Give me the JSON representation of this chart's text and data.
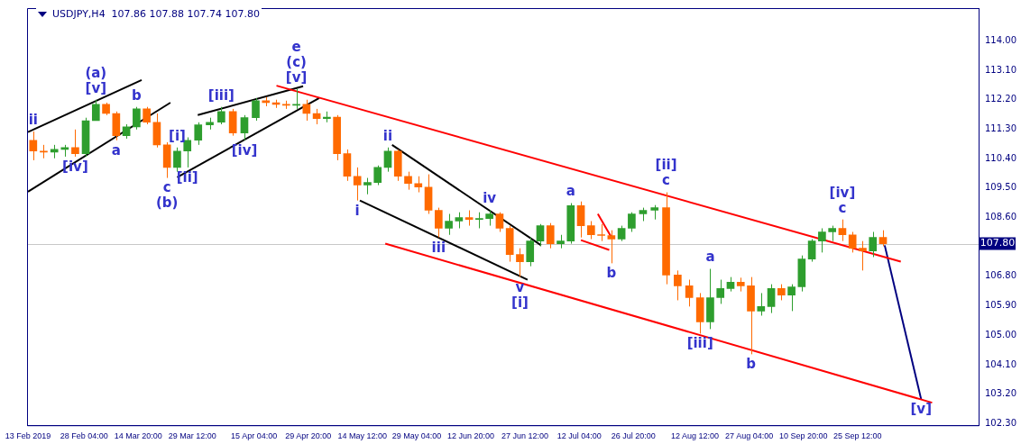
{
  "chart_data": {
    "type": "candlestick",
    "title": "USDJPY,H4  107.86 107.88 107.74 107.80",
    "x": [
      "2019-02-14T10:00",
      "2019-02-17T06:00",
      "2019-02-20T03:00",
      "2019-02-22T23:00",
      "2019-02-25T19:00",
      "2019-02-28T15:00",
      "2019-03-03T09:00",
      "2019-03-06T03:00",
      "2019-03-08T21:00",
      "2019-03-11T15:00",
      "2019-03-14T09:00",
      "2019-03-17T03:00",
      "2019-03-19T21:00",
      "2019-03-22T15:00",
      "2019-03-25T09:00",
      "2019-03-28T03:00",
      "2019-03-31T01:30",
      "2019-04-03T04:30",
      "2019-04-06T07:30",
      "2019-04-09T10:30",
      "2019-04-12T13:30",
      "2019-04-15T15:00",
      "2019-04-18T09:00",
      "2019-04-21T03:00",
      "2019-04-23T21:00",
      "2019-04-26T15:00",
      "2019-04-29T09:00",
      "2019-05-02T03:00",
      "2019-05-04T21:00",
      "2019-05-07T15:00",
      "2019-05-10T09:00",
      "2019-05-13T03:00",
      "2019-05-15T21:00",
      "2019-05-18T15:00",
      "2019-05-21T09:00",
      "2019-05-24T03:00",
      "2019-05-26T21:00",
      "2019-05-29T15:00",
      "2019-06-01T09:00",
      "2019-06-04T03:00",
      "2019-06-06T21:00",
      "2019-06-09T15:00",
      "2019-06-12T09:00",
      "2019-06-15T03:00",
      "2019-06-17T21:00",
      "2019-06-20T15:00",
      "2019-06-23T09:00",
      "2019-06-26T03:00",
      "2019-06-28T21:00",
      "2019-07-01T15:00",
      "2019-07-04T09:00",
      "2019-07-07T03:00",
      "2019-07-09T21:00",
      "2019-07-12T15:00",
      "2019-07-15T09:00",
      "2019-07-18T03:00",
      "2019-07-20T21:00",
      "2019-07-23T15:00",
      "2019-07-26T09:00",
      "2019-07-29T10:30",
      "2019-08-01T13:30",
      "2019-08-04T16:30",
      "2019-08-07T19:30",
      "2019-08-10T22:30",
      "2019-08-13T21:00",
      "2019-08-16T15:00",
      "2019-08-19T09:00",
      "2019-08-22T03:00",
      "2019-08-24T21:00",
      "2019-08-27T15:00",
      "2019-08-30T09:00",
      "2019-09-02T03:00",
      "2019-09-04T21:00",
      "2019-09-07T15:00",
      "2019-09-10T09:00",
      "2019-09-13T03:00",
      "2019-09-15T21:00",
      "2019-09-18T15:00",
      "2019-09-21T09:00",
      "2019-09-24T03:00",
      "2019-09-26T21:00",
      "2019-09-29T15:00",
      "2019-10-02T09:00"
    ],
    "ohlc": [
      [
        110.96,
        111.23,
        110.35,
        110.63
      ],
      [
        110.63,
        110.82,
        110.41,
        110.6
      ],
      [
        110.6,
        110.82,
        110.41,
        110.68
      ],
      [
        110.68,
        110.82,
        110.46,
        110.74
      ],
      [
        110.74,
        111.29,
        110.46,
        110.55
      ],
      [
        110.55,
        111.65,
        110.46,
        111.56
      ],
      [
        111.56,
        112.2,
        111.56,
        112.06
      ],
      [
        112.06,
        112.11,
        111.73,
        111.78
      ],
      [
        111.78,
        111.84,
        110.96,
        111.1
      ],
      [
        111.1,
        111.45,
        111.01,
        111.37
      ],
      [
        111.37,
        111.98,
        111.29,
        111.92
      ],
      [
        111.92,
        111.98,
        111.45,
        111.51
      ],
      [
        111.51,
        111.78,
        110.74,
        110.82
      ],
      [
        110.82,
        110.9,
        109.81,
        110.13
      ],
      [
        110.13,
        110.74,
        110.0,
        110.63
      ],
      [
        110.63,
        111.05,
        110.13,
        110.96
      ],
      [
        110.96,
        111.51,
        110.82,
        111.43
      ],
      [
        111.43,
        111.65,
        111.29,
        111.51
      ],
      [
        111.51,
        111.98,
        111.45,
        111.84
      ],
      [
        111.84,
        111.92,
        111.1,
        111.18
      ],
      [
        111.18,
        111.73,
        110.96,
        111.65
      ],
      [
        111.65,
        112.25,
        111.56,
        112.17
      ],
      [
        112.17,
        112.28,
        112.0,
        112.11
      ],
      [
        112.11,
        112.2,
        111.95,
        112.06
      ],
      [
        112.06,
        112.17,
        111.92,
        112.03
      ],
      [
        112.03,
        112.53,
        111.92,
        112.06
      ],
      [
        112.06,
        112.2,
        111.56,
        111.78
      ],
      [
        111.78,
        111.92,
        111.45,
        111.62
      ],
      [
        111.62,
        111.84,
        111.51,
        111.67
      ],
      [
        111.67,
        111.73,
        110.35,
        110.55
      ],
      [
        110.55,
        110.68,
        109.72,
        109.86
      ],
      [
        109.86,
        110.13,
        109.12,
        109.59
      ],
      [
        109.59,
        109.81,
        109.31,
        109.67
      ],
      [
        109.67,
        110.19,
        109.59,
        110.13
      ],
      [
        110.13,
        110.74,
        110.0,
        110.63
      ],
      [
        110.63,
        110.68,
        109.72,
        109.86
      ],
      [
        109.86,
        110.0,
        109.45,
        109.64
      ],
      [
        109.64,
        109.86,
        109.37,
        109.53
      ],
      [
        109.53,
        109.92,
        108.71,
        108.82
      ],
      [
        108.82,
        108.9,
        107.99,
        108.27
      ],
      [
        108.27,
        108.71,
        108.07,
        108.49
      ],
      [
        108.49,
        108.76,
        108.27,
        108.6
      ],
      [
        108.6,
        108.82,
        108.35,
        108.54
      ],
      [
        108.54,
        108.76,
        108.27,
        108.57
      ],
      [
        108.57,
        108.82,
        108.35,
        108.71
      ],
      [
        108.71,
        108.76,
        108.16,
        108.27
      ],
      [
        108.27,
        108.35,
        107.25,
        107.47
      ],
      [
        107.47,
        107.66,
        106.78,
        107.25
      ],
      [
        107.25,
        107.99,
        107.11,
        107.88
      ],
      [
        107.88,
        108.4,
        107.72,
        108.35
      ],
      [
        108.35,
        108.43,
        107.66,
        107.8
      ],
      [
        107.8,
        108.07,
        107.66,
        107.88
      ],
      [
        107.88,
        109.04,
        107.8,
        108.96
      ],
      [
        108.96,
        109.09,
        107.99,
        108.35
      ],
      [
        108.35,
        108.49,
        107.94,
        108.07
      ],
      [
        108.07,
        108.4,
        107.88,
        108.05
      ],
      [
        108.05,
        108.21,
        107.2,
        107.94
      ],
      [
        107.94,
        108.35,
        107.88,
        108.27
      ],
      [
        108.27,
        108.76,
        108.16,
        108.71
      ],
      [
        108.71,
        108.9,
        108.49,
        108.82
      ],
      [
        108.82,
        108.98,
        108.54,
        108.9
      ],
      [
        108.9,
        109.37,
        106.56,
        106.84
      ],
      [
        106.84,
        106.98,
        106.07,
        106.51
      ],
      [
        106.51,
        106.7,
        105.88,
        106.15
      ],
      [
        106.15,
        106.29,
        105.05,
        105.41
      ],
      [
        105.41,
        107.03,
        105.19,
        106.15
      ],
      [
        106.15,
        106.7,
        105.96,
        106.43
      ],
      [
        106.43,
        106.78,
        106.34,
        106.62
      ],
      [
        106.62,
        106.76,
        106.34,
        106.51
      ],
      [
        106.51,
        106.78,
        104.42,
        105.74
      ],
      [
        105.74,
        106.29,
        105.6,
        105.88
      ],
      [
        105.88,
        106.56,
        105.68,
        106.43
      ],
      [
        106.43,
        106.56,
        106.07,
        106.23
      ],
      [
        106.23,
        106.56,
        105.74,
        106.48
      ],
      [
        106.48,
        107.44,
        106.34,
        107.33
      ],
      [
        107.33,
        107.94,
        107.25,
        107.88
      ],
      [
        107.88,
        108.27,
        107.53,
        108.16
      ],
      [
        108.16,
        108.35,
        107.88,
        108.27
      ],
      [
        108.27,
        108.54,
        107.88,
        108.07
      ],
      [
        108.07,
        108.16,
        107.53,
        107.66
      ],
      [
        107.66,
        107.88,
        106.98,
        107.58
      ],
      [
        107.58,
        108.16,
        107.39,
        107.99
      ],
      [
        107.99,
        108.21,
        107.72,
        107.8
      ]
    ],
    "colors": [
      "#ff6a00",
      "#ff6a00",
      "#2e9e2e",
      "#2e9e2e",
      "#ff6a00",
      "#2e9e2e",
      "#2e9e2e",
      "#ff6a00",
      "#ff6a00",
      "#2e9e2e",
      "#2e9e2e",
      "#ff6a00",
      "#ff6a00",
      "#ff6a00",
      "#2e9e2e",
      "#2e9e2e",
      "#2e9e2e",
      "#2e9e2e",
      "#2e9e2e",
      "#ff6a00",
      "#2e9e2e",
      "#2e9e2e",
      "#ff6a00",
      "#ff6a00",
      "#ff6a00",
      "#2e9e2e",
      "#ff6a00",
      "#ff6a00",
      "#2e9e2e",
      "#ff6a00",
      "#ff6a00",
      "#ff6a00",
      "#2e9e2e",
      "#2e9e2e",
      "#2e9e2e",
      "#ff6a00",
      "#ff6a00",
      "#ff6a00",
      "#ff6a00",
      "#ff6a00",
      "#2e9e2e",
      "#2e9e2e",
      "#ff6a00",
      "#2e9e2e",
      "#2e9e2e",
      "#ff6a00",
      "#ff6a00",
      "#ff6a00",
      "#2e9e2e",
      "#2e9e2e",
      "#ff6a00",
      "#2e9e2e",
      "#2e9e2e",
      "#ff6a00",
      "#ff6a00",
      "#ff6a00",
      "#ff6a00",
      "#2e9e2e",
      "#2e9e2e",
      "#2e9e2e",
      "#2e9e2e",
      "#ff6a00",
      "#ff6a00",
      "#ff6a00",
      "#ff6a00",
      "#2e9e2e",
      "#2e9e2e",
      "#2e9e2e",
      "#ff6a00",
      "#ff6a00",
      "#2e9e2e",
      "#2e9e2e",
      "#ff6a00",
      "#2e9e2e",
      "#2e9e2e",
      "#2e9e2e",
      "#2e9e2e",
      "#2e9e2e",
      "#ff6a00",
      "#ff6a00",
      "#ff6a00",
      "#2e9e2e",
      "#ff6a00"
    ],
    "series": [
      {
        "type": "line",
        "color": "#ff0000",
        "x": [
          "2019-04-21T06:00",
          "2019-10-07T04:30"
        ],
        "values": [
          112.63,
          107.25
        ]
      },
      {
        "type": "line",
        "color": "#ff0000",
        "x": [
          "2019-05-20T16:30",
          "2019-10-15T16:00"
        ],
        "values": [
          107.8,
          102.94
        ]
      },
      {
        "type": "line",
        "color": "#000000",
        "x": [
          "2019-05-22T12:30",
          "2019-07-01T20:30"
        ],
        "values": [
          110.82,
          107.75
        ]
      },
      {
        "type": "line",
        "color": "#000000",
        "x": [
          "2019-05-13T19:30",
          "2019-06-28T04:30"
        ],
        "values": [
          109.12,
          106.7
        ]
      },
      {
        "type": "line",
        "color": "#000000",
        "x": [
          "2019-02-13T00:00",
          "2019-03-15T18:00"
        ],
        "values": [
          111.21,
          112.8
        ]
      },
      {
        "type": "line",
        "color": "#000000",
        "x": [
          "2019-02-13T00:00",
          "2019-03-23T13:00"
        ],
        "values": [
          109.39,
          112.11
        ]
      },
      {
        "type": "line",
        "color": "#000000",
        "x": [
          "2019-03-30T22:30",
          "2019-04-28T11:00"
        ],
        "values": [
          111.73,
          112.61
        ]
      },
      {
        "type": "line",
        "color": "#000000",
        "x": [
          "2019-03-25T09:00",
          "2019-05-02T19:30"
        ],
        "values": [
          109.83,
          112.25
        ]
      },
      {
        "type": "line",
        "color": "#ff0000",
        "x": [
          "2019-07-12T15:00",
          "2019-07-20T07:00"
        ],
        "values": [
          107.91,
          107.61
        ]
      },
      {
        "type": "line",
        "color": "#ff0000",
        "x": [
          "2019-07-17T05:00",
          "2019-07-20T18:00"
        ],
        "values": [
          108.71,
          108.02
        ]
      },
      {
        "type": "line",
        "color": "#000080",
        "x": [
          "2019-10-02T20:00",
          "2019-10-12T16:30"
        ],
        "values": [
          107.75,
          103.05
        ]
      }
    ],
    "ref_lines": [
      {
        "axis": "y",
        "value": 107.8,
        "label": "107.80",
        "color": "#c8c8c8"
      }
    ],
    "annotations": [
      {
        "text": "ii",
        "x": "2019-02-14T10:00",
        "y": 111.23
      },
      {
        "text": "[v]",
        "x": "2019-03-03T09:00",
        "y": 112.2
      },
      {
        "text": "(a)",
        "x": "2019-03-03T09:00",
        "y": 112.2
      },
      {
        "text": "b",
        "x": "2019-03-14T09:00",
        "y": 111.98
      },
      {
        "text": "a",
        "x": "2019-03-08T21:00",
        "y": 110.96
      },
      {
        "text": "[iv]",
        "x": "2019-02-25T19:00",
        "y": 110.46
      },
      {
        "text": "c",
        "x": "2019-03-22T15:00",
        "y": 109.81
      },
      {
        "text": "(b)",
        "x": "2019-03-22T15:00",
        "y": 109.81
      },
      {
        "text": "[i]",
        "x": "2019-03-25T09:00",
        "y": 110.74
      },
      {
        "text": "[ii]",
        "x": "2019-03-28T03:00",
        "y": 110.13
      },
      {
        "text": "[iii]",
        "x": "2019-04-06T07:30",
        "y": 111.98
      },
      {
        "text": "[iv]",
        "x": "2019-04-12T13:30",
        "y": 110.96
      },
      {
        "text": "[v]",
        "x": "2019-04-26T15:00",
        "y": 112.53
      },
      {
        "text": "(c)",
        "x": "2019-04-26T15:00",
        "y": 112.53
      },
      {
        "text": "e",
        "x": "2019-04-26T15:00",
        "y": 112.53
      },
      {
        "text": "i",
        "x": "2019-05-13T03:00",
        "y": 109.12
      },
      {
        "text": "ii",
        "x": "2019-05-21T09:00",
        "y": 110.74
      },
      {
        "text": "iii",
        "x": "2019-06-04T03:00",
        "y": 107.99
      },
      {
        "text": "iv",
        "x": "2019-06-17T21:00",
        "y": 108.82
      },
      {
        "text": "v",
        "x": "2019-06-26T03:00",
        "y": 106.78
      },
      {
        "text": "[i]",
        "x": "2019-06-26T03:00",
        "y": 106.78
      },
      {
        "text": "a",
        "x": "2019-07-09T21:00",
        "y": 109.04
      },
      {
        "text": "b",
        "x": "2019-07-20T21:00",
        "y": 107.2
      },
      {
        "text": "c",
        "x": "2019-08-04T16:30",
        "y": 109.37
      },
      {
        "text": "[ii]",
        "x": "2019-08-04T16:30",
        "y": 109.37
      },
      {
        "text": "[iii]",
        "x": "2019-08-13T21:00",
        "y": 105.05
      },
      {
        "text": "a",
        "x": "2019-08-16T15:00",
        "y": 107.03
      },
      {
        "text": "b",
        "x": "2019-08-27T15:00",
        "y": 104.42
      },
      {
        "text": "c",
        "x": "2019-09-21T09:00",
        "y": 108.54
      },
      {
        "text": "[iv]",
        "x": "2019-09-21T09:00",
        "y": 108.54
      },
      {
        "text": "[v]",
        "x": "2019-10-12T16:30",
        "y": 103.05
      }
    ],
    "xlim": [
      "2019-02-12T18:00",
      "2019-10-28T06:00"
    ],
    "xticks": [
      {
        "value": "2019-02-13",
        "label": "13 Feb 2019"
      },
      {
        "value": "2019-02-28T04:00",
        "label": "28 Feb 04:00"
      },
      {
        "value": "2019-03-14T20:00",
        "label": "14 Mar 20:00"
      },
      {
        "value": "2019-03-29T12:00",
        "label": "29 Mar 12:00"
      },
      {
        "value": "2019-04-15T04:00",
        "label": "15 Apr 04:00"
      },
      {
        "value": "2019-04-29T20:00",
        "label": "29 Apr 20:00"
      },
      {
        "value": "2019-05-14T12:00",
        "label": "14 May 12:00"
      },
      {
        "value": "2019-05-29T04:00",
        "label": "29 May 04:00"
      },
      {
        "value": "2019-06-12T20:00",
        "label": "12 Jun 20:00"
      },
      {
        "value": "2019-06-27T12:00",
        "label": "27 Jun 12:00"
      },
      {
        "value": "2019-07-12T04:00",
        "label": "12 Jul 04:00"
      },
      {
        "value": "2019-07-26T20:00",
        "label": "26 Jul 20:00"
      },
      {
        "value": "2019-08-12T12:00",
        "label": "12 Aug 12:00"
      },
      {
        "value": "2019-08-27T04:00",
        "label": "27 Aug 04:00"
      },
      {
        "value": "2019-09-10T20:00",
        "label": "10 Sep 20:00"
      },
      {
        "value": "2019-09-25T12:00",
        "label": "25 Sep 12:00"
      }
    ],
    "ylim": [
      102.25,
      115.0
    ],
    "yticks": [
      {
        "value": 114,
        "label": "114.00"
      },
      {
        "value": 113.1,
        "label": "113.10"
      },
      {
        "value": 112.2,
        "label": "112.20"
      },
      {
        "value": 111.3,
        "label": "111.30"
      },
      {
        "value": 110.4,
        "label": "110.40"
      },
      {
        "value": 109.5,
        "label": "109.50"
      },
      {
        "value": 108.6,
        "label": "108.60"
      },
      {
        "value": 106.8,
        "label": "106.80"
      },
      {
        "value": 105.9,
        "label": "105.90"
      },
      {
        "value": 105.0,
        "label": "105.00"
      },
      {
        "value": 104.1,
        "label": "104.10"
      },
      {
        "value": 103.2,
        "label": "103.20"
      },
      {
        "value": 102.3,
        "label": "102.30"
      }
    ],
    "grid": false,
    "legend": false
  }
}
